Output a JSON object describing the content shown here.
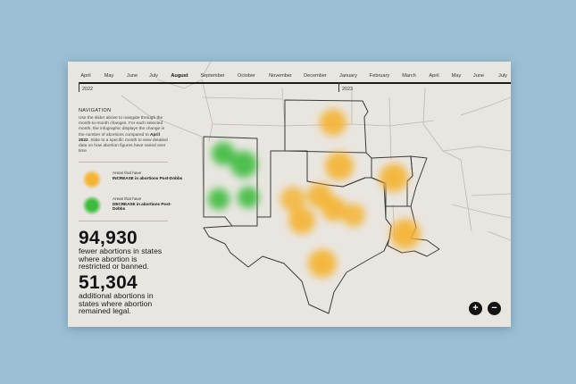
{
  "timeline": {
    "months": [
      "April",
      "May",
      "June",
      "July",
      "August",
      "September",
      "October",
      "November",
      "December",
      "January",
      "February",
      "March",
      "April",
      "May",
      "June",
      "July"
    ],
    "active_month": "August",
    "years": [
      "2022",
      "2023"
    ]
  },
  "navigation": {
    "heading": "NAVIGATION",
    "text_part1": "Use the slider above to navigate through the month-to-month changes. For each selected month, the infographic displays the change in the number of abortions compared to ",
    "text_bold": "April 2022",
    "text_part2": ". Slide to a specific month to view detailed data on how abortion figures have varied over time"
  },
  "legend": {
    "increase_prefix": "Areas that have",
    "increase_bold": "INCREASE in abortions Post-Dobbs",
    "decrease_prefix": "Areas that have",
    "decrease_bold": "DECREASE in abortions Post-Dobbs"
  },
  "stats": {
    "fewer_number": "94,930",
    "fewer_text": "fewer abortions in states where abortion is restricted or banned.",
    "additional_number": "51,304",
    "additional_text": "additional abortions in states where abortion remained legal."
  },
  "colors": {
    "increase": "#f5b431",
    "decrease": "#3dbb3d"
  },
  "icons": {
    "zoom_in": "+",
    "zoom_out": "−"
  }
}
